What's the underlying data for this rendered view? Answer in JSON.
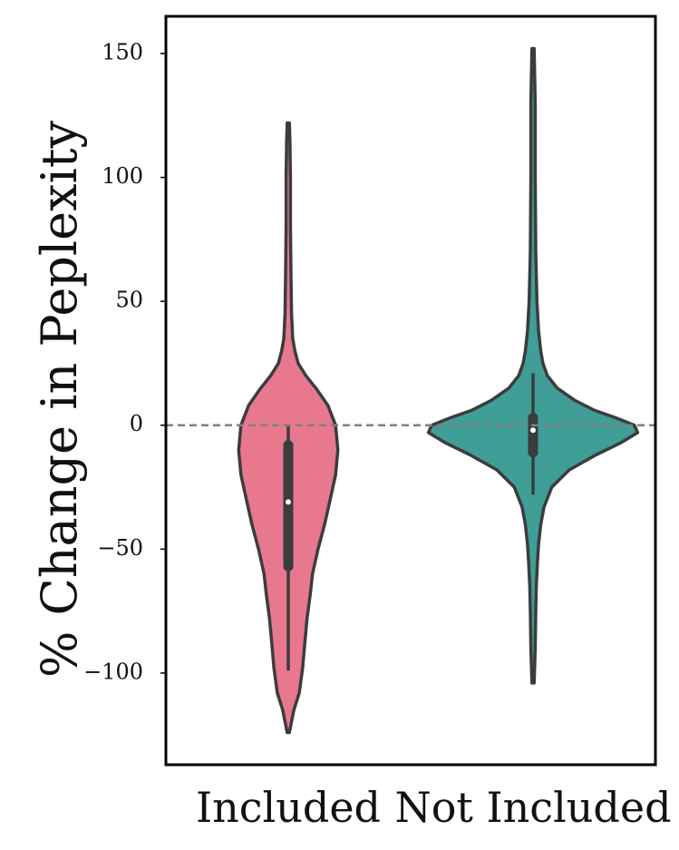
{
  "chart_data": {
    "type": "violin",
    "ylabel": "% Change in Peplexity",
    "xlabel": "",
    "ylim": [
      -137,
      165
    ],
    "yticks": [
      150,
      100,
      50,
      0,
      -50,
      -100
    ],
    "ytick_labels": [
      "150",
      "100",
      "50",
      "0",
      "−50",
      "−100"
    ],
    "reference_line": {
      "y": 0,
      "style": "dashed",
      "color": "#808080"
    },
    "grid": false,
    "categories": [
      "Included",
      "Not Included"
    ],
    "series": [
      {
        "category": "Included",
        "color": "#e8788e",
        "min": -124,
        "max": 122,
        "q1": -57,
        "median": -31,
        "q3": -8,
        "whisker_low": -99,
        "whisker_high": 0,
        "density": [
          [
            -124,
            0.01
          ],
          [
            -115,
            0.05
          ],
          [
            -108,
            0.1
          ],
          [
            -98,
            0.13
          ],
          [
            -88,
            0.15
          ],
          [
            -78,
            0.17
          ],
          [
            -68,
            0.2
          ],
          [
            -60,
            0.22
          ],
          [
            -50,
            0.27
          ],
          [
            -40,
            0.33
          ],
          [
            -30,
            0.38
          ],
          [
            -20,
            0.43
          ],
          [
            -10,
            0.45
          ],
          [
            0,
            0.43
          ],
          [
            8,
            0.36
          ],
          [
            15,
            0.25
          ],
          [
            20,
            0.16
          ],
          [
            25,
            0.09
          ],
          [
            30,
            0.06
          ],
          [
            35,
            0.04
          ],
          [
            45,
            0.03
          ],
          [
            60,
            0.025
          ],
          [
            80,
            0.02
          ],
          [
            100,
            0.02
          ],
          [
            115,
            0.015
          ],
          [
            122,
            0.01
          ]
        ]
      },
      {
        "category": "Not Included",
        "color": "#3f9e96",
        "min": -104,
        "max": 152,
        "q1": -11,
        "median": -2,
        "q3": 3,
        "whisker_low": -28,
        "whisker_high": 21,
        "density": [
          [
            -104,
            0.01
          ],
          [
            -90,
            0.02
          ],
          [
            -75,
            0.025
          ],
          [
            -65,
            0.03
          ],
          [
            -55,
            0.04
          ],
          [
            -48,
            0.05
          ],
          [
            -40,
            0.07
          ],
          [
            -33,
            0.1
          ],
          [
            -25,
            0.17
          ],
          [
            -18,
            0.33
          ],
          [
            -12,
            0.57
          ],
          [
            -7,
            0.8
          ],
          [
            -3,
            0.95
          ],
          [
            0,
            0.92
          ],
          [
            3,
            0.75
          ],
          [
            6,
            0.56
          ],
          [
            10,
            0.38
          ],
          [
            15,
            0.22
          ],
          [
            20,
            0.13
          ],
          [
            25,
            0.09
          ],
          [
            30,
            0.07
          ],
          [
            38,
            0.05
          ],
          [
            50,
            0.035
          ],
          [
            70,
            0.025
          ],
          [
            100,
            0.02
          ],
          [
            130,
            0.02
          ],
          [
            152,
            0.01
          ]
        ]
      }
    ]
  }
}
